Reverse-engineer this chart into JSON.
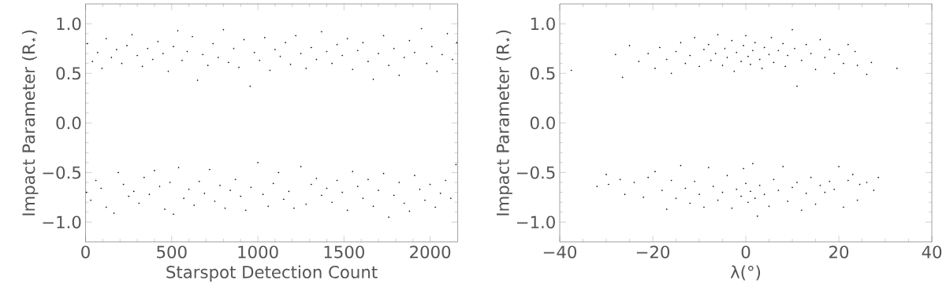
{
  "chart_data": [
    {
      "type": "scatter",
      "xlabel": "Starspot Detection Count",
      "ylabel": "Impact Parameter (R$_{⋆}$)",
      "marker": "circle",
      "xlim": [
        0,
        2160
      ],
      "ylim": [
        -1.2,
        1.2
      ],
      "xticks": [
        0,
        500,
        1000,
        1500,
        2000
      ],
      "yticks": [
        {
          "value": -1.0,
          "label": "−1.0"
        },
        {
          "value": -0.5,
          "label": "−0.5"
        },
        {
          "value": 0.0,
          "label": "0.0"
        },
        {
          "value": 0.5,
          "label": "0.5"
        },
        {
          "value": 1.0,
          "label": "1.0"
        }
      ],
      "series": [
        {
          "color": "#000000",
          "x": [
            10,
            40,
            70,
            95,
            120,
            150,
            180,
            210,
            240,
            270,
            300,
            330,
            360,
            390,
            420,
            450,
            480,
            510,
            535,
            560,
            590,
            620,
            650,
            680,
            710,
            740,
            770,
            800,
            830,
            860,
            890,
            920,
            955,
            980,
            1010,
            1040,
            1070,
            1100,
            1130,
            1160,
            1190,
            1220,
            1250,
            1280,
            1310,
            1340,
            1370,
            1400,
            1430,
            1460,
            1490,
            1520,
            1550,
            1580,
            1610,
            1640,
            1670,
            1700,
            1730,
            1760,
            1790,
            1820,
            1850,
            1880,
            1910,
            1950,
            1980,
            2010,
            2040,
            2070,
            2100,
            2130,
            2155
          ],
          "values": [
            0.8,
            0.62,
            0.71,
            0.55,
            0.85,
            0.66,
            0.74,
            0.6,
            0.78,
            0.89,
            0.68,
            0.57,
            0.75,
            0.64,
            0.82,
            0.7,
            0.52,
            0.77,
            0.93,
            0.63,
            0.72,
            0.87,
            0.43,
            0.69,
            0.58,
            0.8,
            0.66,
            0.94,
            0.61,
            0.75,
            0.56,
            0.84,
            0.37,
            0.71,
            0.63,
            0.86,
            0.53,
            0.74,
            0.67,
            0.81,
            0.59,
            0.88,
            0.7,
            0.55,
            0.76,
            0.64,
            0.92,
            0.72,
            0.6,
            0.79,
            0.68,
            0.85,
            0.54,
            0.73,
            0.81,
            0.62,
            0.44,
            0.7,
            0.88,
            0.58,
            0.75,
            0.48,
            0.66,
            0.83,
            0.71,
            0.95,
            0.6,
            0.77,
            0.52,
            0.69,
            0.9,
            0.64,
            0.81
          ]
        },
        {
          "color": "#000000",
          "x": [
            5,
            30,
            60,
            90,
            120,
            165,
            190,
            220,
            250,
            280,
            310,
            340,
            370,
            400,
            430,
            460,
            490,
            510,
            540,
            570,
            600,
            630,
            660,
            690,
            720,
            750,
            780,
            810,
            840,
            870,
            900,
            930,
            960,
            1000,
            1030,
            1060,
            1090,
            1120,
            1150,
            1180,
            1210,
            1250,
            1280,
            1310,
            1340,
            1370,
            1400,
            1430,
            1460,
            1490,
            1520,
            1550,
            1580,
            1610,
            1640,
            1670,
            1700,
            1730,
            1760,
            1790,
            1820,
            1850,
            1880,
            1910,
            1940,
            1970,
            2000,
            2030,
            2060,
            2090,
            2120,
            2150
          ],
          "values": [
            -0.7,
            -0.78,
            -0.58,
            -0.66,
            -0.85,
            -0.91,
            -0.5,
            -0.62,
            -0.74,
            -0.69,
            -0.81,
            -0.55,
            -0.72,
            -0.48,
            -0.64,
            -0.87,
            -0.6,
            -0.92,
            -0.45,
            -0.76,
            -0.67,
            -0.83,
            -0.59,
            -0.71,
            -0.47,
            -0.79,
            -0.63,
            -0.86,
            -0.68,
            -0.57,
            -0.74,
            -0.88,
            -0.65,
            -0.4,
            -0.72,
            -0.84,
            -0.61,
            -0.5,
            -0.77,
            -0.69,
            -0.86,
            -0.44,
            -0.82,
            -0.62,
            -0.56,
            -0.73,
            -0.66,
            -0.8,
            -0.58,
            -0.7,
            -0.88,
            -0.49,
            -0.64,
            -0.76,
            -0.57,
            -0.84,
            -0.68,
            -0.51,
            -0.95,
            -0.73,
            -0.6,
            -0.81,
            -0.89,
            -0.53,
            -0.67,
            -0.78,
            -0.62,
            -0.85,
            -0.71,
            -0.58,
            -0.76,
            -0.42
          ]
        }
      ]
    },
    {
      "type": "scatter",
      "xlabel": "λ(°)",
      "ylabel": "Impact Parameter (R$_{⋆}$)",
      "marker": "circle",
      "xlim": [
        -40,
        40
      ],
      "ylim": [
        -1.2,
        1.2
      ],
      "xticks": [
        {
          "value": -40,
          "label": "−40"
        },
        {
          "value": -20,
          "label": "−20"
        },
        0,
        20,
        40
      ],
      "yticks": [
        {
          "value": -1.0,
          "label": "−1.0"
        },
        {
          "value": -0.5,
          "label": "−0.5"
        },
        {
          "value": 0.0,
          "label": "0.0"
        },
        {
          "value": 0.5,
          "label": "0.5"
        },
        {
          "value": 1.0,
          "label": "1.0"
        }
      ],
      "series": [
        {
          "color": "#000000",
          "x": [
            -37.5,
            -28,
            -26.5,
            -25,
            -23,
            -21,
            -19.5,
            -18.5,
            -17,
            -16,
            -15,
            -14,
            -13,
            -12,
            -11,
            -10,
            -9,
            -8,
            -7.5,
            -6.5,
            -6,
            -5,
            -4.5,
            -4,
            -3,
            -2.5,
            -2,
            -1,
            -0.5,
            0,
            0.5,
            1,
            1.5,
            2,
            3,
            3.5,
            4,
            5,
            5.5,
            6,
            7,
            8,
            8.5,
            9,
            10,
            10.5,
            11,
            12,
            13,
            14,
            15,
            16,
            17,
            18,
            19,
            20,
            21,
            22,
            23.5,
            24,
            26,
            27,
            32.5
          ],
          "values": [
            0.53,
            0.69,
            0.46,
            0.78,
            0.62,
            0.7,
            0.55,
            0.76,
            0.64,
            0.5,
            0.72,
            0.81,
            0.6,
            0.68,
            0.86,
            0.57,
            0.74,
            0.79,
            0.63,
            0.7,
            0.89,
            0.58,
            0.75,
            0.66,
            0.83,
            0.52,
            0.71,
            0.62,
            0.78,
            0.88,
            0.67,
            0.59,
            0.73,
            0.81,
            0.64,
            0.55,
            0.76,
            0.69,
            0.86,
            0.61,
            0.73,
            0.8,
            0.57,
            0.68,
            0.94,
            0.75,
            0.37,
            0.63,
            0.79,
            0.7,
            0.54,
            0.84,
            0.66,
            0.74,
            0.5,
            0.69,
            0.6,
            0.79,
            0.72,
            0.58,
            0.49,
            0.61,
            0.55
          ]
        },
        {
          "color": "#000000",
          "x": [
            -32,
            -30,
            -29.5,
            -27,
            -26,
            -24,
            -22,
            -21,
            -19.5,
            -18,
            -17,
            -16,
            -15,
            -14,
            -13,
            -12,
            -11,
            -10,
            -9,
            -8,
            -7,
            -6,
            -5,
            -4,
            -3,
            -2,
            -1,
            -0.5,
            0,
            0.5,
            1,
            1.5,
            2,
            2.5,
            3,
            4,
            5,
            6,
            7,
            8,
            9,
            10,
            11,
            12,
            13,
            14,
            15,
            16,
            17,
            18,
            19,
            20,
            21,
            22,
            23,
            24,
            24.5,
            26,
            27.5,
            28.5
          ],
          "values": [
            -0.64,
            -0.52,
            -0.62,
            -0.57,
            -0.72,
            -0.6,
            -0.75,
            -0.55,
            -0.49,
            -0.68,
            -0.87,
            -0.58,
            -0.76,
            -0.43,
            -0.66,
            -0.81,
            -0.59,
            -0.72,
            -0.85,
            -0.45,
            -0.64,
            -0.78,
            -0.7,
            -0.53,
            -0.86,
            -0.67,
            -0.74,
            -0.46,
            -0.61,
            -0.8,
            -0.69,
            -0.41,
            -0.76,
            -0.94,
            -0.63,
            -0.72,
            -0.84,
            -0.57,
            -0.68,
            -0.44,
            -0.79,
            -0.65,
            -0.6,
            -0.88,
            -0.71,
            -0.55,
            -0.82,
            -0.63,
            -0.7,
            -0.59,
            -0.67,
            -0.44,
            -0.85,
            -0.58,
            -0.52,
            -0.78,
            -0.62,
            -0.6,
            -0.68,
            -0.55
          ]
        }
      ]
    }
  ]
}
